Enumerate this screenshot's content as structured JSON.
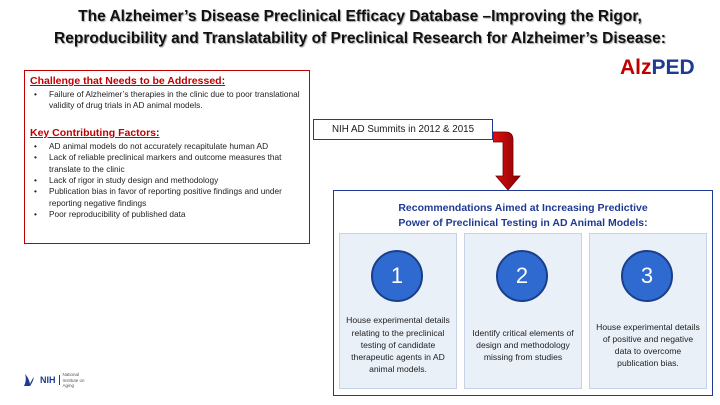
{
  "header": {
    "title_line1": "The Alzheimer’s Disease Preclinical Efficacy Database –Improving the Rigor,",
    "title_line2": "Reproducibility and Translatability of Preclinical Research for Alzheimer’s Disease:"
  },
  "logo": {
    "part1": "Alz",
    "part2": "PED",
    "color1": "#c00000",
    "color2": "#1f3a93"
  },
  "challenge": {
    "heading": "Challenge that Needs to be Addressed",
    "items": [
      "Failure of Alzheimer’s therapies in the clinic due to poor translational validity of drug trials in AD animal models."
    ]
  },
  "factors": {
    "heading": "Key Contributing Factors",
    "items": [
      "AD animal models do not accurately recapitulate human AD",
      "Lack of reliable preclinical markers and outcome measures that translate to the clinic",
      "Lack of rigor in study design and methodology",
      "Publication bias in favor of reporting positive findings and under reporting negative findings",
      "Poor reproducibility of published data"
    ]
  },
  "summits": {
    "label": "NIH AD Summits in 2012 & 2015"
  },
  "recommendations": {
    "title_line1": "Recommendations Aimed at Increasing Predictive",
    "title_line2": "Power of Preclinical Testing in AD Animal Models:",
    "items": [
      {
        "num": "1",
        "text": "House experimental details relating to the preclinical testing of candidate therapeutic agents in AD animal models."
      },
      {
        "num": "2",
        "text": "Identify critical elements of design and methodology missing from studies"
      },
      {
        "num": "3",
        "text": "House experimental details of positive and negative data to overcome publication bias."
      }
    ]
  },
  "footer": {
    "nih_mark": "NIH",
    "nih_sub": "National Institute on Aging"
  },
  "colors": {
    "accent_red": "#c00000",
    "accent_blue": "#1f3a93",
    "circle_blue": "#2f6ad0",
    "panel_bg": "#eaf0f8"
  }
}
